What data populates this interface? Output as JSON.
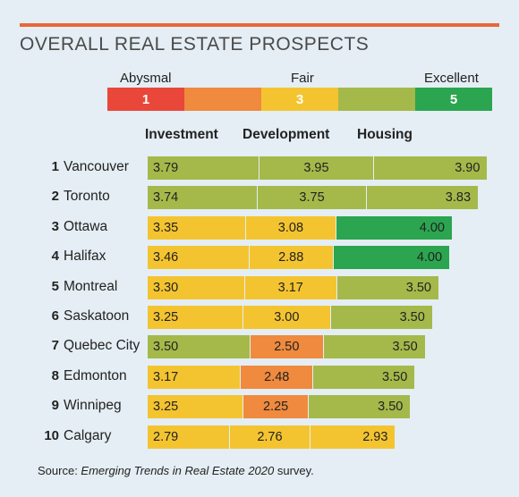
{
  "title": "OVERALL REAL ESTATE PROSPECTS",
  "scale": {
    "labels": [
      {
        "text": "Abysmal",
        "left": 134
      },
      {
        "text": "Fair",
        "left": 325
      },
      {
        "text": "Excellent",
        "left": 474
      }
    ],
    "segments": [
      {
        "label": "1",
        "color": "#e8473a"
      },
      {
        "label": "",
        "color": "#ef8a3e"
      },
      {
        "label": "3",
        "color": "#f4c430"
      },
      {
        "label": "",
        "color": "#a4b94a"
      },
      {
        "label": "5",
        "color": "#2ba54f"
      }
    ]
  },
  "columns": [
    "Investment",
    "Development",
    "Housing"
  ],
  "colors": {
    "abysmal": "#e8473a",
    "poor": "#ef8a3e",
    "fair": "#f4c430",
    "good": "#a4b94a",
    "excellent": "#2ba54f"
  },
  "chart_data": {
    "type": "bar",
    "stacked": true,
    "title": "OVERALL REAL ESTATE PROSPECTS",
    "scale_min": 1,
    "scale_max": 5,
    "categories": [
      "Vancouver",
      "Toronto",
      "Ottawa",
      "Halifax",
      "Montreal",
      "Saskatoon",
      "Quebec City",
      "Edmonton",
      "Winnipeg",
      "Calgary"
    ],
    "ranks": [
      "1",
      "2",
      "3",
      "4",
      "5",
      "6",
      "7",
      "8",
      "9",
      "10"
    ],
    "series": [
      {
        "name": "Investment",
        "values": [
          3.79,
          3.74,
          3.35,
          3.46,
          3.3,
          3.25,
          3.5,
          3.17,
          3.25,
          2.79
        ],
        "labels": [
          "3.79",
          "3.74",
          "3.35",
          "3.46",
          "3.30",
          "3.25",
          "3.50",
          "3.17",
          "3.25",
          "2.79"
        ]
      },
      {
        "name": "Development",
        "values": [
          3.95,
          3.75,
          3.08,
          2.88,
          3.17,
          3.0,
          2.5,
          2.48,
          2.25,
          2.76
        ],
        "labels": [
          "3.95",
          "3.75",
          "3.08",
          "2.88",
          "3.17",
          "3.00",
          "2.50",
          "2.48",
          "2.25",
          "2.76"
        ]
      },
      {
        "name": "Housing",
        "values": [
          3.9,
          3.83,
          4.0,
          4.0,
          3.5,
          3.5,
          3.5,
          3.5,
          3.5,
          2.93
        ],
        "labels": [
          "3.90",
          "3.83",
          "4.00",
          "4.00",
          "3.50",
          "3.50",
          "3.50",
          "3.50",
          "3.50",
          "2.93"
        ]
      }
    ]
  },
  "source": {
    "prefix": "Source: ",
    "italic": "Emerging Trends in Real Estate 2020",
    "suffix": " survey."
  }
}
